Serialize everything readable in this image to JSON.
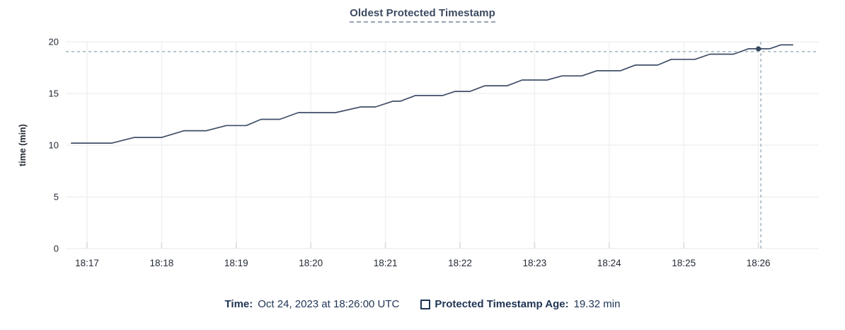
{
  "title": "Oldest Protected Timestamp",
  "y_axis_label": "time (min)",
  "legend": {
    "time_label": "Time:",
    "time_value": "Oct 24, 2023 at 18:26:00 UTC",
    "series_label": "Protected Timestamp Age:",
    "series_value": "19.32 min"
  },
  "colors": {
    "line": "#3f4e68",
    "dot": "#394760",
    "crosshair": "#9fb3bd",
    "grid": "#f0f1f2",
    "grid_tick": "#d9dce0",
    "tick_text": "#242a35"
  },
  "chart_data": {
    "type": "line",
    "title": "Oldest Protected Timestamp",
    "xlabel": "",
    "ylabel": "time (min)",
    "ylim": [
      0,
      20
    ],
    "yticks": [
      0,
      5,
      10,
      15,
      20
    ],
    "xtick_labels": [
      "18:17",
      "18:18",
      "18:19",
      "18:20",
      "18:21",
      "18:22",
      "18:23",
      "18:24",
      "18:25",
      "18:26"
    ],
    "x_unit": "seconds after 18:17:00 UTC, Oct 24 2023",
    "x_visible_range_s": [
      -17,
      589
    ],
    "grid": true,
    "legend_position": "bottom",
    "series": [
      {
        "name": "Protected Timestamp Age",
        "unit": "min",
        "points": [
          [
            -13,
            10.2
          ],
          [
            20,
            10.2
          ],
          [
            38,
            10.75
          ],
          [
            60,
            10.75
          ],
          [
            78,
            11.4
          ],
          [
            96,
            11.4
          ],
          [
            112,
            11.9
          ],
          [
            128,
            11.9
          ],
          [
            140,
            12.5
          ],
          [
            155,
            12.5
          ],
          [
            170,
            13.15
          ],
          [
            200,
            13.15
          ],
          [
            220,
            13.7
          ],
          [
            232,
            13.7
          ],
          [
            246,
            14.25
          ],
          [
            252,
            14.25
          ],
          [
            264,
            14.8
          ],
          [
            286,
            14.8
          ],
          [
            296,
            15.2
          ],
          [
            308,
            15.2
          ],
          [
            320,
            15.75
          ],
          [
            338,
            15.75
          ],
          [
            350,
            16.3
          ],
          [
            370,
            16.3
          ],
          [
            382,
            16.7
          ],
          [
            398,
            16.7
          ],
          [
            410,
            17.2
          ],
          [
            429,
            17.2
          ],
          [
            441,
            17.75
          ],
          [
            459,
            17.75
          ],
          [
            470,
            18.3
          ],
          [
            489,
            18.3
          ],
          [
            501,
            18.8
          ],
          [
            520,
            18.8
          ],
          [
            532,
            19.32
          ],
          [
            549,
            19.32
          ],
          [
            558,
            19.7
          ],
          [
            568,
            19.7
          ]
        ]
      }
    ],
    "hover": {
      "time": "Oct 24, 2023 at 18:26:00 UTC",
      "point_s": 540,
      "point_value": 19.32,
      "vline_s": 542,
      "hline_value": 19.05
    }
  }
}
